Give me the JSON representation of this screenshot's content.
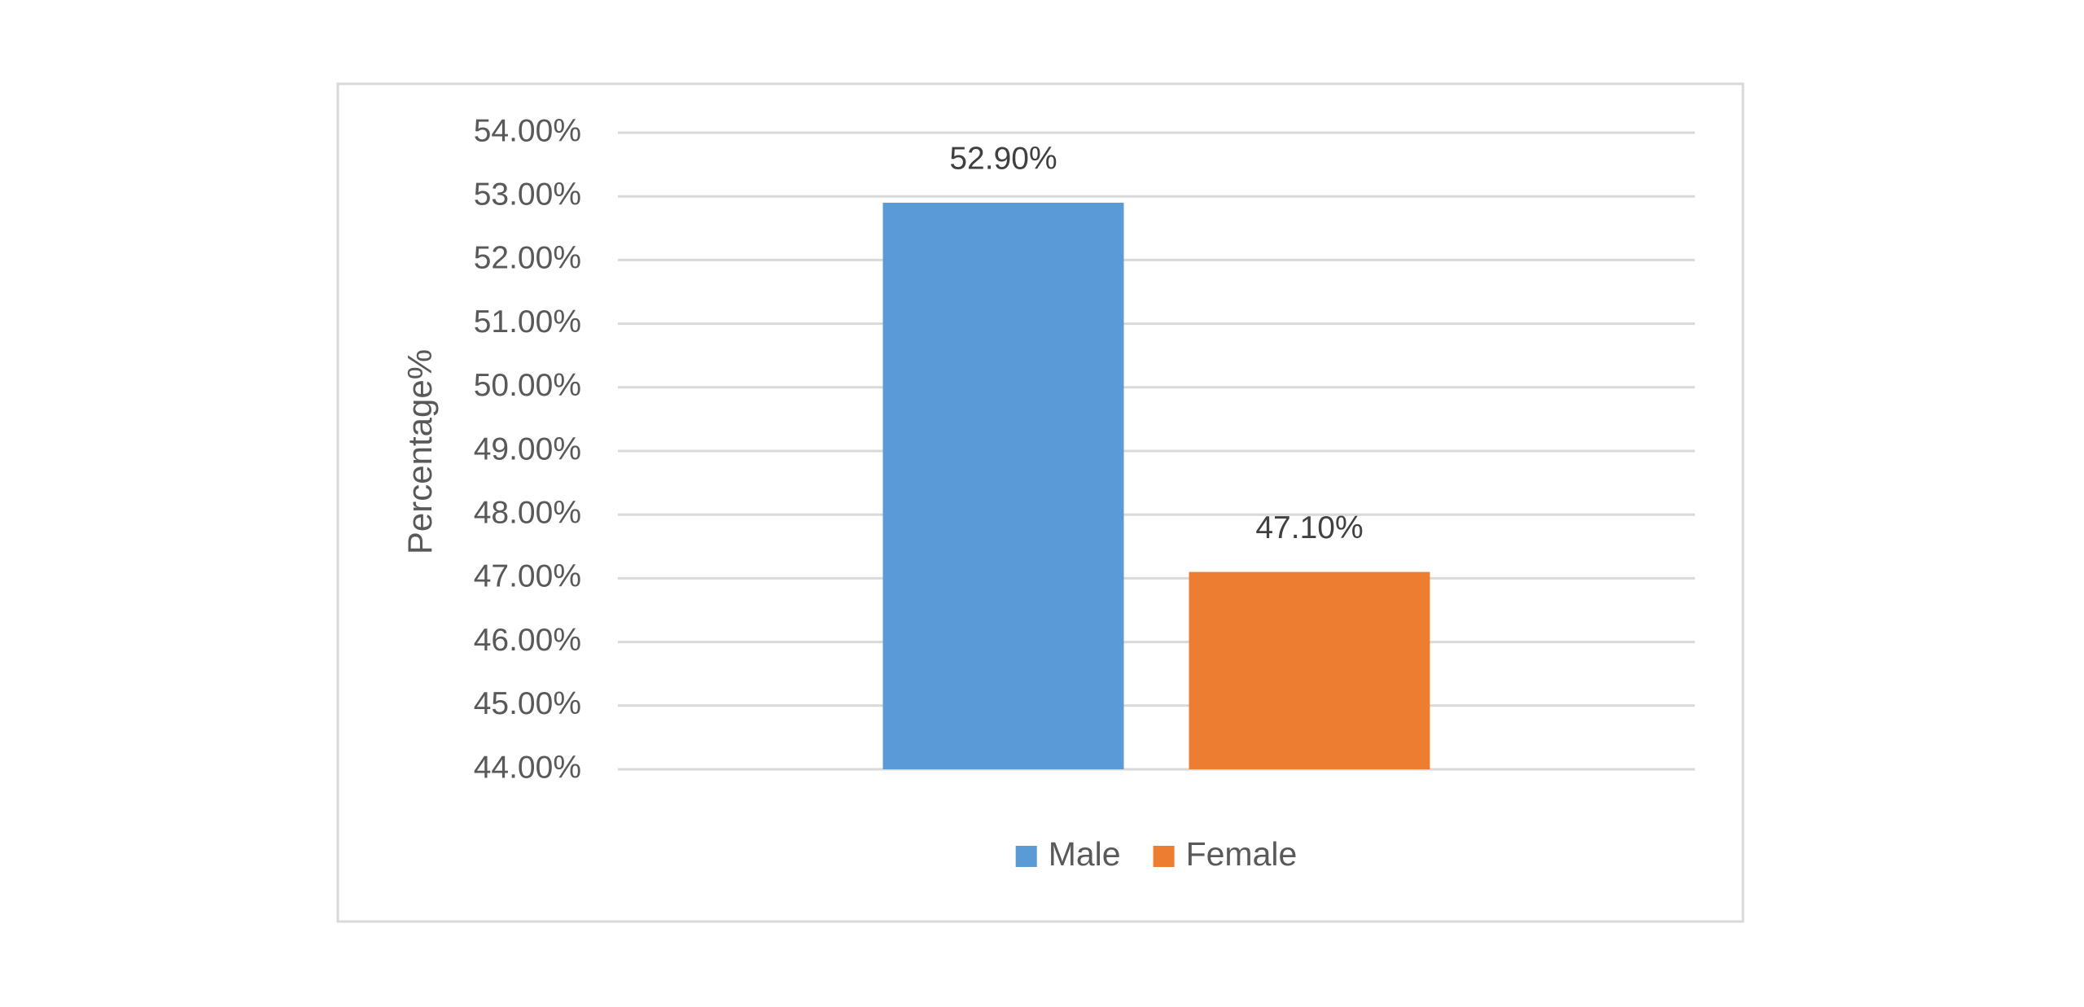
{
  "chart_data": {
    "type": "bar",
    "y_label": "Percentage%",
    "categories": [
      null
    ],
    "series": [
      {
        "name": "Male",
        "color": "#5b9bd5",
        "values": [
          52.9
        ],
        "value_labels": [
          "52.90%"
        ]
      },
      {
        "name": "Female",
        "color": "#ed7d31",
        "values": [
          47.1
        ],
        "value_labels": [
          "47.10%"
        ]
      }
    ],
    "ylim": [
      44,
      54
    ],
    "yticks": [
      {
        "value": 44,
        "label": "44.00%"
      },
      {
        "value": 45,
        "label": "45.00%"
      },
      {
        "value": 46,
        "label": "46.00%"
      },
      {
        "value": 47,
        "label": "47.00%"
      },
      {
        "value": 48,
        "label": "48.00%"
      },
      {
        "value": 49,
        "label": "49.00%"
      },
      {
        "value": 50,
        "label": "50.00%"
      },
      {
        "value": 51,
        "label": "51.00%"
      },
      {
        "value": 52,
        "label": "52.00%"
      },
      {
        "value": 53,
        "label": "53.00%"
      },
      {
        "value": 54,
        "label": "54.00%"
      }
    ],
    "grid": true,
    "legend": "bottom"
  }
}
